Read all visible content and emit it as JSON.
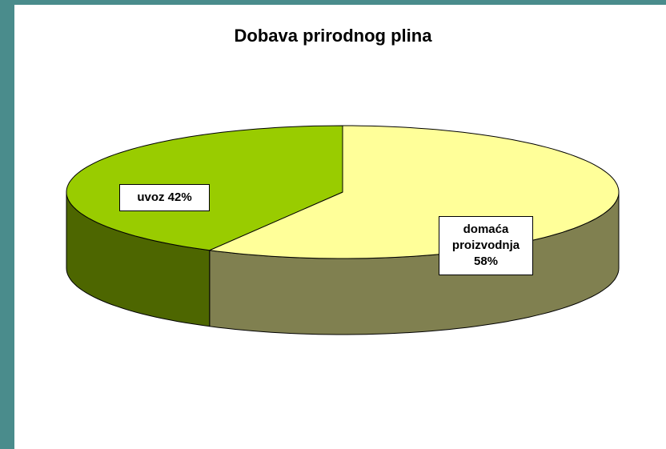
{
  "chart_data": {
    "type": "pie",
    "title": "Dobava prirodnog plina",
    "categories": [
      "domaća proizvodnja",
      "uvoz"
    ],
    "values": [
      58,
      42
    ],
    "value_labels": [
      "58%",
      "42%"
    ],
    "colors": [
      "#ffff99",
      "#99cc00"
    ],
    "side_colors": [
      "#808050",
      "#4d6600"
    ]
  }
}
